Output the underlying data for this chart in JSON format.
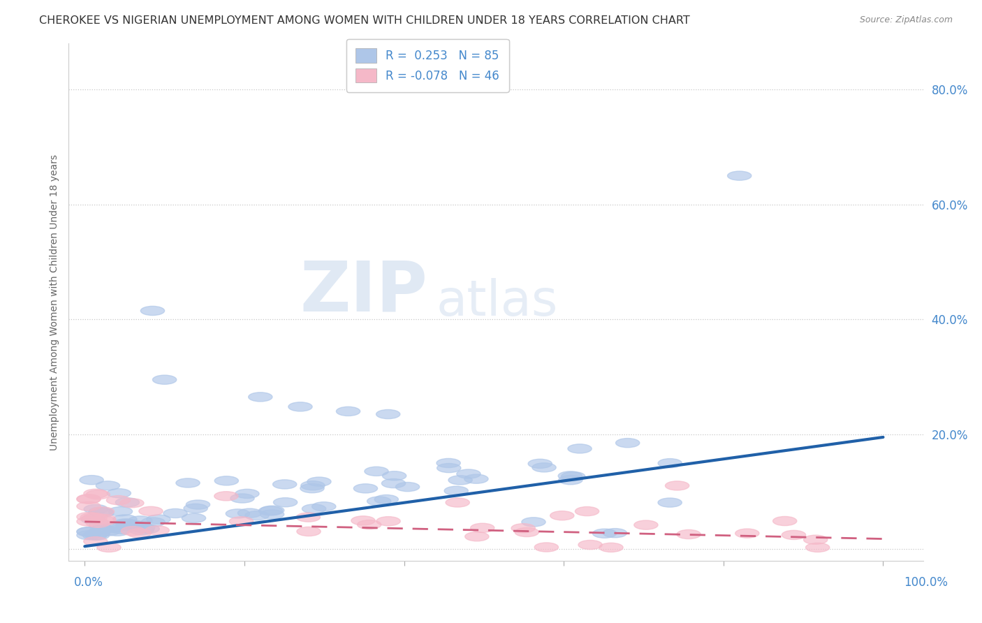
{
  "title": "CHEROKEE VS NIGERIAN UNEMPLOYMENT AMONG WOMEN WITH CHILDREN UNDER 18 YEARS CORRELATION CHART",
  "source": "Source: ZipAtlas.com",
  "ylabel": "Unemployment Among Women with Children Under 18 years",
  "watermark_zip": "ZIP",
  "watermark_atlas": "atlas",
  "xlim": [
    -0.02,
    1.05
  ],
  "ylim": [
    -0.02,
    0.88
  ],
  "yticks": [
    0.0,
    0.2,
    0.4,
    0.6,
    0.8
  ],
  "ytick_labels": [
    "",
    "20.0%",
    "40.0%",
    "60.0%",
    "80.0%"
  ],
  "cherokee_R": 0.253,
  "cherokee_N": 85,
  "nigerian_R": -0.078,
  "nigerian_N": 46,
  "cherokee_color": "#aec6e8",
  "nigerian_color": "#f5b8c8",
  "cherokee_line_color": "#2060a8",
  "nigerian_line_color": "#d06080",
  "background_color": "#ffffff",
  "grid_color": "#c8c8c8",
  "title_color": "#333333",
  "source_color": "#888888",
  "label_color": "#4488cc",
  "ch_line_x0": 0.0,
  "ch_line_x1": 1.0,
  "ch_line_y0": 0.005,
  "ch_line_y1": 0.195,
  "ng_line_x0": 0.0,
  "ng_line_x1": 1.0,
  "ng_line_y0": 0.048,
  "ng_line_y1": 0.018
}
